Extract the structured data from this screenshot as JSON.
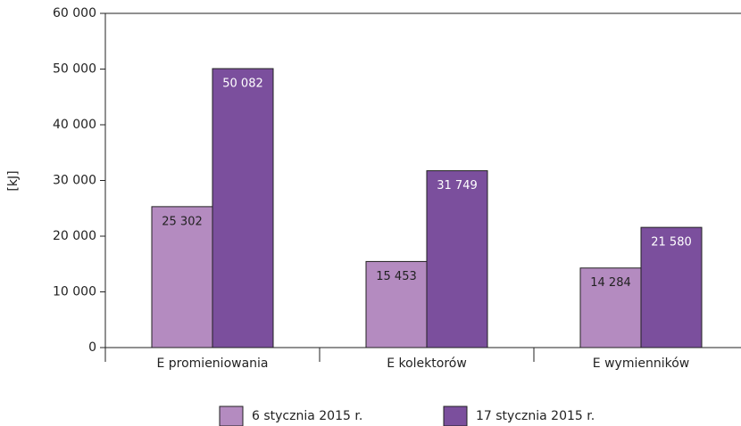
{
  "chart_data": {
    "type": "bar",
    "y_label": "[kJ]",
    "categories": [
      "E promieniowania",
      "E kolektorów",
      "E wymienników"
    ],
    "series": [
      {
        "name": "6 stycznia 2015 r.",
        "color": "#b48bc0",
        "values": [
          25302,
          15453,
          14284
        ],
        "value_labels": [
          "25 302",
          "15 453",
          "14 284"
        ]
      },
      {
        "name": "17 stycznia 2015 r.",
        "color": "#7b4f9d",
        "values": [
          50082,
          31749,
          21580
        ],
        "value_labels": [
          "50 082",
          "31 749",
          "21 580"
        ]
      }
    ],
    "ylim": [
      0,
      60000
    ],
    "yticks": [
      0,
      {
        "value": 10000,
        "label": "10 000"
      },
      {
        "value": 20000,
        "label": "20 000"
      },
      {
        "value": 30000,
        "label": "30 000"
      },
      {
        "value": 40000,
        "label": "40 000"
      },
      {
        "value": 50000,
        "label": "50 000"
      },
      {
        "value": 60000,
        "label": "60 000"
      }
    ],
    "grid": false,
    "legend": "bottom"
  }
}
